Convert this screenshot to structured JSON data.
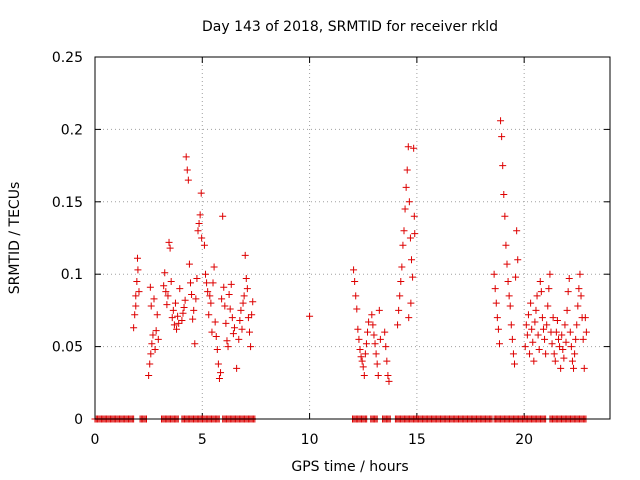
{
  "chart_data": {
    "type": "scatter",
    "title": "Day 143 of 2018, SRMTID for receiver rkld",
    "xlabel": "GPS time / hours",
    "ylabel": "SRMTID / TECUs",
    "xlim": [
      0,
      24
    ],
    "ylim": [
      0,
      0.25
    ],
    "xticks": [
      {
        "value": 0,
        "label": "0"
      },
      {
        "value": 5,
        "label": "5"
      },
      {
        "value": 10,
        "label": "10"
      },
      {
        "value": 15,
        "label": "15"
      },
      {
        "value": 20,
        "label": "20"
      }
    ],
    "yticks": [
      {
        "value": 0,
        "label": "0"
      },
      {
        "value": 0.05,
        "label": "0.05"
      },
      {
        "value": 0.1,
        "label": "0.1"
      },
      {
        "value": 0.15,
        "label": "0.15"
      },
      {
        "value": 0.2,
        "label": "0.2"
      },
      {
        "value": 0.25,
        "label": "0.25"
      }
    ],
    "grid": true,
    "marker": "plus",
    "color": "#dd0000",
    "series": [
      {
        "name": "SRMTID",
        "points": [
          [
            1.8,
            0.063
          ],
          [
            1.85,
            0.072
          ],
          [
            1.9,
            0.085
          ],
          [
            1.95,
            0.095
          ],
          [
            2.0,
            0.103
          ],
          [
            1.98,
            0.111
          ],
          [
            1.9,
            0.078
          ],
          [
            2.05,
            0.088
          ],
          [
            2.5,
            0.03
          ],
          [
            2.55,
            0.038
          ],
          [
            2.6,
            0.045
          ],
          [
            2.65,
            0.052
          ],
          [
            2.7,
            0.058
          ],
          [
            2.58,
            0.091
          ],
          [
            2.62,
            0.078
          ],
          [
            2.8,
            0.048
          ],
          [
            2.85,
            0.061
          ],
          [
            2.9,
            0.072
          ],
          [
            2.75,
            0.083
          ],
          [
            2.95,
            0.055
          ],
          [
            3.2,
            0.092
          ],
          [
            3.25,
            0.101
          ],
          [
            3.3,
            0.088
          ],
          [
            3.35,
            0.079
          ],
          [
            3.4,
            0.085
          ],
          [
            3.45,
            0.122
          ],
          [
            3.5,
            0.118
          ],
          [
            3.55,
            0.095
          ],
          [
            3.6,
            0.07
          ],
          [
            3.65,
            0.075
          ],
          [
            3.7,
            0.065
          ],
          [
            3.75,
            0.08
          ],
          [
            3.8,
            0.062
          ],
          [
            3.85,
            0.071
          ],
          [
            3.9,
            0.066
          ],
          [
            3.95,
            0.09
          ],
          [
            4.05,
            0.068
          ],
          [
            4.1,
            0.073
          ],
          [
            4.15,
            0.077
          ],
          [
            4.2,
            0.082
          ],
          [
            4.25,
            0.181
          ],
          [
            4.3,
            0.172
          ],
          [
            4.35,
            0.165
          ],
          [
            4.4,
            0.107
          ],
          [
            4.45,
            0.094
          ],
          [
            4.5,
            0.086
          ],
          [
            4.55,
            0.069
          ],
          [
            4.6,
            0.075
          ],
          [
            4.65,
            0.052
          ],
          [
            4.7,
            0.083
          ],
          [
            4.75,
            0.097
          ],
          [
            4.8,
            0.13
          ],
          [
            4.85,
            0.135
          ],
          [
            4.9,
            0.141
          ],
          [
            4.95,
            0.156
          ],
          [
            4.97,
            0.125
          ],
          [
            5.1,
            0.12
          ],
          [
            5.15,
            0.1
          ],
          [
            5.2,
            0.094
          ],
          [
            5.25,
            0.088
          ],
          [
            5.3,
            0.072
          ],
          [
            5.35,
            0.085
          ],
          [
            5.4,
            0.08
          ],
          [
            5.45,
            0.06
          ],
          [
            5.5,
            0.094
          ],
          [
            5.55,
            0.105
          ],
          [
            5.6,
            0.067
          ],
          [
            5.65,
            0.057
          ],
          [
            5.7,
            0.048
          ],
          [
            5.75,
            0.038
          ],
          [
            5.8,
            0.028
          ],
          [
            5.85,
            0.032
          ],
          [
            5.9,
            0.083
          ],
          [
            5.95,
            0.14
          ],
          [
            6.0,
            0.091
          ],
          [
            6.05,
            0.078
          ],
          [
            6.1,
            0.066
          ],
          [
            6.15,
            0.054
          ],
          [
            6.2,
            0.05
          ],
          [
            6.25,
            0.086
          ],
          [
            6.3,
            0.076
          ],
          [
            6.35,
            0.093
          ],
          [
            6.4,
            0.07
          ],
          [
            6.45,
            0.059
          ],
          [
            6.5,
            0.063
          ],
          [
            6.6,
            0.035
          ],
          [
            6.7,
            0.055
          ],
          [
            6.75,
            0.068
          ],
          [
            6.8,
            0.075
          ],
          [
            6.85,
            0.062
          ],
          [
            6.9,
            0.08
          ],
          [
            6.95,
            0.085
          ],
          [
            7.0,
            0.113
          ],
          [
            7.05,
            0.097
          ],
          [
            7.1,
            0.09
          ],
          [
            7.15,
            0.07
          ],
          [
            7.2,
            0.06
          ],
          [
            7.25,
            0.05
          ],
          [
            7.3,
            0.072
          ],
          [
            7.35,
            0.081
          ],
          [
            10.0,
            0.071
          ],
          [
            12.05,
            0.103
          ],
          [
            12.1,
            0.095
          ],
          [
            12.15,
            0.085
          ],
          [
            12.2,
            0.076
          ],
          [
            12.25,
            0.062
          ],
          [
            12.3,
            0.055
          ],
          [
            12.35,
            0.048
          ],
          [
            12.4,
            0.043
          ],
          [
            12.45,
            0.04
          ],
          [
            12.5,
            0.036
          ],
          [
            12.55,
            0.03
          ],
          [
            12.6,
            0.045
          ],
          [
            12.65,
            0.052
          ],
          [
            12.7,
            0.06
          ],
          [
            12.75,
            0.067
          ],
          [
            12.9,
            0.072
          ],
          [
            12.95,
            0.065
          ],
          [
            13.0,
            0.058
          ],
          [
            13.05,
            0.052
          ],
          [
            13.1,
            0.045
          ],
          [
            13.15,
            0.038
          ],
          [
            13.2,
            0.03
          ],
          [
            13.25,
            0.075
          ],
          [
            13.3,
            0.055
          ],
          [
            13.5,
            0.06
          ],
          [
            13.55,
            0.05
          ],
          [
            13.6,
            0.04
          ],
          [
            13.65,
            0.03
          ],
          [
            13.7,
            0.026
          ],
          [
            14.1,
            0.065
          ],
          [
            14.15,
            0.075
          ],
          [
            14.2,
            0.085
          ],
          [
            14.25,
            0.095
          ],
          [
            14.3,
            0.105
          ],
          [
            14.35,
            0.12
          ],
          [
            14.4,
            0.13
          ],
          [
            14.45,
            0.145
          ],
          [
            14.5,
            0.16
          ],
          [
            14.55,
            0.172
          ],
          [
            14.6,
            0.188
          ],
          [
            14.65,
            0.15
          ],
          [
            14.7,
            0.125
          ],
          [
            14.75,
            0.11
          ],
          [
            14.8,
            0.098
          ],
          [
            14.85,
            0.187
          ],
          [
            14.88,
            0.14
          ],
          [
            14.9,
            0.128
          ],
          [
            14.72,
            0.08
          ],
          [
            14.62,
            0.07
          ],
          [
            18.6,
            0.1
          ],
          [
            18.65,
            0.09
          ],
          [
            18.7,
            0.08
          ],
          [
            18.75,
            0.07
          ],
          [
            18.8,
            0.062
          ],
          [
            18.85,
            0.052
          ],
          [
            18.9,
            0.206
          ],
          [
            18.95,
            0.195
          ],
          [
            19.0,
            0.175
          ],
          [
            19.05,
            0.155
          ],
          [
            19.1,
            0.14
          ],
          [
            19.15,
            0.12
          ],
          [
            19.2,
            0.107
          ],
          [
            19.25,
            0.095
          ],
          [
            19.3,
            0.085
          ],
          [
            19.35,
            0.078
          ],
          [
            19.4,
            0.065
          ],
          [
            19.45,
            0.055
          ],
          [
            19.5,
            0.045
          ],
          [
            19.55,
            0.038
          ],
          [
            19.6,
            0.098
          ],
          [
            19.65,
            0.13
          ],
          [
            19.7,
            0.11
          ],
          [
            20.05,
            0.05
          ],
          [
            20.1,
            0.065
          ],
          [
            20.15,
            0.058
          ],
          [
            20.2,
            0.072
          ],
          [
            20.25,
            0.045
          ],
          [
            20.3,
            0.08
          ],
          [
            20.35,
            0.062
          ],
          [
            20.4,
            0.053
          ],
          [
            20.45,
            0.04
          ],
          [
            20.5,
            0.067
          ],
          [
            20.55,
            0.075
          ],
          [
            20.6,
            0.085
          ],
          [
            20.65,
            0.058
          ],
          [
            20.7,
            0.048
          ],
          [
            20.75,
            0.095
          ],
          [
            20.8,
            0.088
          ],
          [
            20.85,
            0.07
          ],
          [
            20.9,
            0.062
          ],
          [
            20.95,
            0.055
          ],
          [
            21.0,
            0.045
          ],
          [
            21.05,
            0.065
          ],
          [
            21.1,
            0.078
          ],
          [
            21.15,
            0.09
          ],
          [
            21.2,
            0.1
          ],
          [
            21.25,
            0.06
          ],
          [
            21.3,
            0.052
          ],
          [
            21.35,
            0.07
          ],
          [
            21.4,
            0.045
          ],
          [
            21.45,
            0.04
          ],
          [
            21.5,
            0.06
          ],
          [
            21.55,
            0.068
          ],
          [
            21.6,
            0.055
          ],
          [
            21.65,
            0.05
          ],
          [
            21.7,
            0.035
          ],
          [
            21.75,
            0.058
          ],
          [
            21.8,
            0.048
          ],
          [
            21.85,
            0.042
          ],
          [
            21.9,
            0.065
          ],
          [
            21.95,
            0.053
          ],
          [
            22.0,
            0.075
          ],
          [
            22.05,
            0.088
          ],
          [
            22.1,
            0.097
          ],
          [
            22.15,
            0.06
          ],
          [
            22.2,
            0.05
          ],
          [
            22.25,
            0.04
          ],
          [
            22.3,
            0.035
          ],
          [
            22.35,
            0.045
          ],
          [
            22.4,
            0.055
          ],
          [
            22.45,
            0.065
          ],
          [
            22.5,
            0.078
          ],
          [
            22.55,
            0.09
          ],
          [
            22.6,
            0.1
          ],
          [
            22.65,
            0.085
          ],
          [
            22.7,
            0.07
          ],
          [
            22.75,
            0.055
          ],
          [
            22.8,
            0.035
          ],
          [
            22.85,
            0.07
          ],
          [
            22.9,
            0.06
          ]
        ],
        "zero_segments": [
          [
            0.0,
            1.8
          ],
          [
            2.1,
            2.4
          ],
          [
            3.1,
            3.9
          ],
          [
            4.05,
            5.8
          ],
          [
            5.95,
            7.5
          ],
          [
            12.0,
            12.7
          ],
          [
            12.85,
            13.2
          ],
          [
            13.4,
            13.8
          ],
          [
            14.0,
            18.5
          ],
          [
            18.6,
            21.0
          ],
          [
            21.2,
            22.9
          ]
        ]
      }
    ]
  }
}
